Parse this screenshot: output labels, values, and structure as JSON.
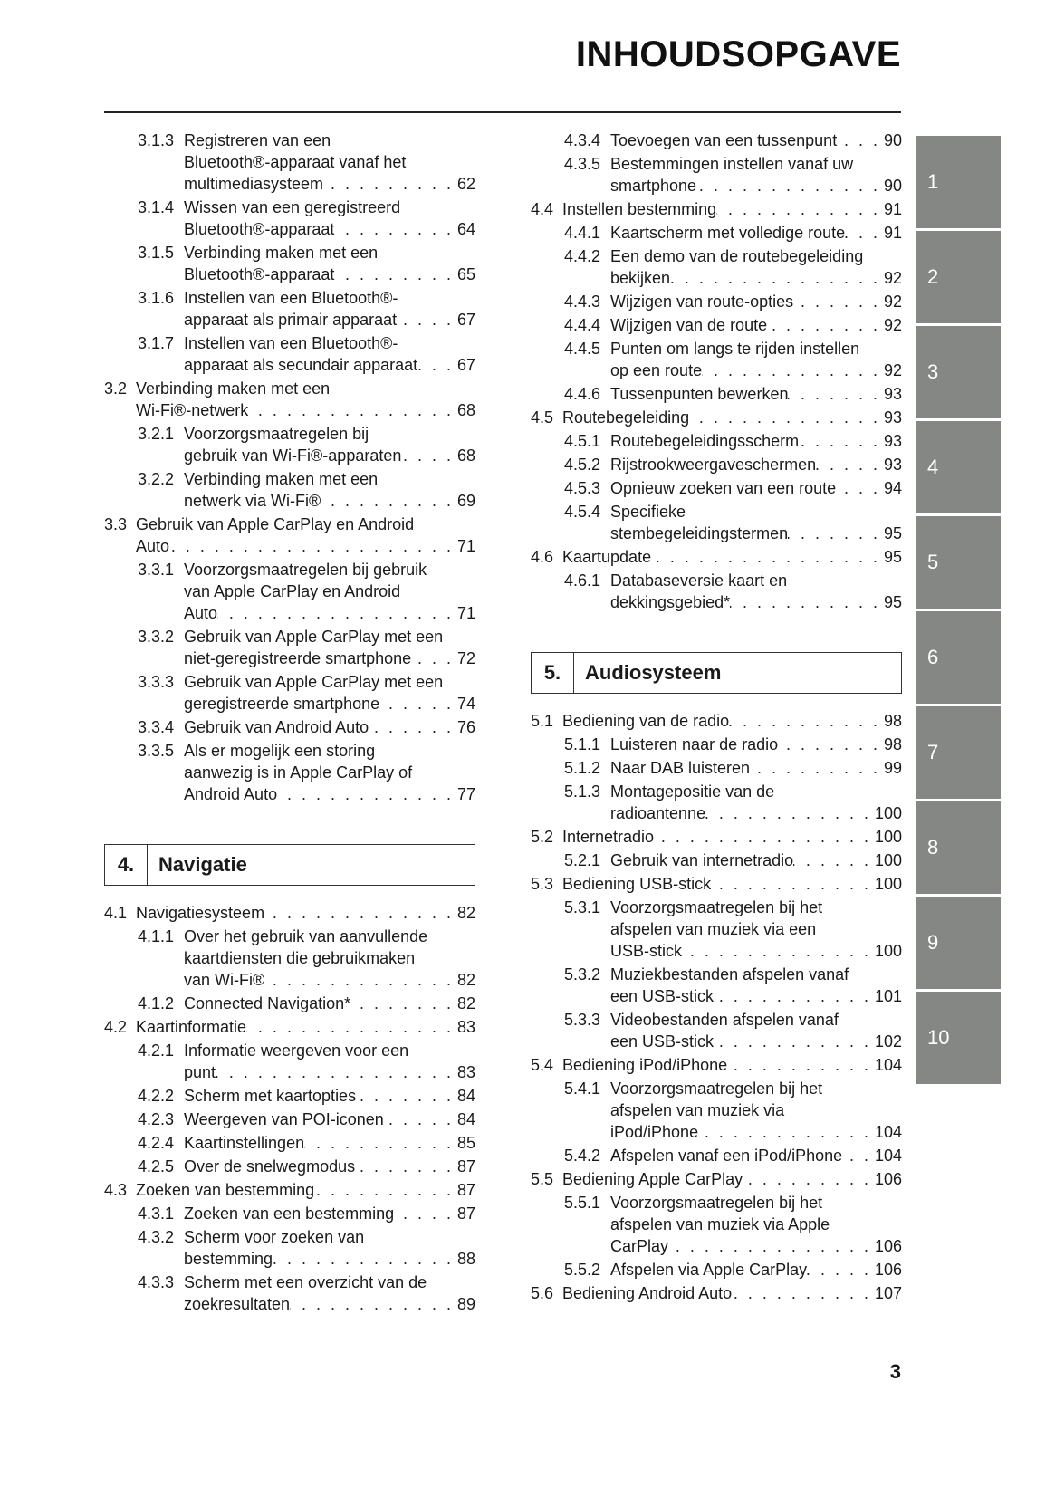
{
  "title": "INHOUDSOPGAVE",
  "page_number": "3",
  "tab_color": "#848784",
  "chapter_tabs": [
    "1",
    "2",
    "3",
    "4",
    "5",
    "6",
    "7",
    "8",
    "9",
    "10"
  ],
  "left": {
    "items": [
      {
        "num": "3.1.3",
        "level": 3,
        "lines": [
          "Registreren van een",
          "Bluetooth®-apparaat vanaf het",
          "multimediasysteem"
        ],
        "page": "62"
      },
      {
        "num": "3.1.4",
        "level": 3,
        "lines": [
          "Wissen van een geregistreerd",
          "Bluetooth®-apparaat"
        ],
        "page": "64"
      },
      {
        "num": "3.1.5",
        "level": 3,
        "lines": [
          "Verbinding maken met een",
          "Bluetooth®-apparaat"
        ],
        "page": "65"
      },
      {
        "num": "3.1.6",
        "level": 3,
        "lines": [
          "Instellen van een Bluetooth®-",
          "apparaat als primair apparaat"
        ],
        "page": "67"
      },
      {
        "num": "3.1.7",
        "level": 3,
        "lines": [
          "Instellen van een Bluetooth®-",
          "apparaat als secundair apparaat"
        ],
        "page": "67"
      },
      {
        "num": "3.2",
        "level": 2,
        "lines": [
          "Verbinding maken met een",
          "Wi-Fi®-netwerk"
        ],
        "page": "68"
      },
      {
        "num": "3.2.1",
        "level": 3,
        "lines": [
          "Voorzorgsmaatregelen bij",
          "gebruik van Wi-Fi®-apparaten"
        ],
        "page": "68"
      },
      {
        "num": "3.2.2",
        "level": 3,
        "lines": [
          "Verbinding maken met een",
          "netwerk via Wi-Fi®"
        ],
        "page": "69"
      },
      {
        "num": "3.3",
        "level": 2,
        "lines": [
          "Gebruik van Apple CarPlay en Android",
          "Auto"
        ],
        "page": "71"
      },
      {
        "num": "3.3.1",
        "level": 3,
        "lines": [
          "Voorzorgsmaatregelen bij gebruik",
          "van Apple CarPlay en Android",
          "Auto"
        ],
        "page": "71"
      },
      {
        "num": "3.3.2",
        "level": 3,
        "lines": [
          "Gebruik van Apple CarPlay met een",
          "niet-geregistreerde smartphone"
        ],
        "page": "72"
      },
      {
        "num": "3.3.3",
        "level": 3,
        "lines": [
          "Gebruik van Apple CarPlay met een",
          "geregistreerde smartphone"
        ],
        "page": "74"
      },
      {
        "num": "3.3.4",
        "level": 3,
        "lines": [
          "Gebruik van Android Auto"
        ],
        "page": "76"
      },
      {
        "num": "3.3.5",
        "level": 3,
        "lines": [
          "Als er mogelijk een storing",
          "aanwezig is in Apple CarPlay of",
          "Android Auto"
        ],
        "page": "77"
      },
      {
        "heading": true,
        "num": "4.",
        "title": "Navigatie"
      },
      {
        "num": "4.1",
        "level": 2,
        "lines": [
          "Navigatiesysteem"
        ],
        "page": "82"
      },
      {
        "num": "4.1.1",
        "level": 3,
        "lines": [
          "Over het gebruik van aanvullende",
          "kaartdiensten die gebruikmaken",
          "van Wi-Fi®"
        ],
        "page": "82"
      },
      {
        "num": "4.1.2",
        "level": 3,
        "lines": [
          "Connected Navigation*"
        ],
        "page": "82"
      },
      {
        "num": "4.2",
        "level": 2,
        "lines": [
          "Kaartinformatie"
        ],
        "page": "83"
      },
      {
        "num": "4.2.1",
        "level": 3,
        "lines": [
          "Informatie weergeven voor een",
          "punt"
        ],
        "page": "83"
      },
      {
        "num": "4.2.2",
        "level": 3,
        "lines": [
          "Scherm met kaartopties"
        ],
        "page": "84"
      },
      {
        "num": "4.2.3",
        "level": 3,
        "lines": [
          "Weergeven van POI-iconen"
        ],
        "page": "84"
      },
      {
        "num": "4.2.4",
        "level": 3,
        "lines": [
          "Kaartinstellingen"
        ],
        "page": "85"
      },
      {
        "num": "4.2.5",
        "level": 3,
        "lines": [
          "Over de snelwegmodus"
        ],
        "page": "87"
      },
      {
        "num": "4.3",
        "level": 2,
        "lines": [
          "Zoeken van bestemming"
        ],
        "page": "87"
      },
      {
        "num": "4.3.1",
        "level": 3,
        "lines": [
          "Zoeken van een bestemming"
        ],
        "page": "87"
      },
      {
        "num": "4.3.2",
        "level": 3,
        "lines": [
          "Scherm voor zoeken van",
          "bestemming"
        ],
        "page": "88"
      },
      {
        "num": "4.3.3",
        "level": 3,
        "lines": [
          "Scherm met een overzicht van de",
          "zoekresultaten"
        ],
        "page": "89"
      }
    ]
  },
  "right": {
    "items": [
      {
        "num": "4.3.4",
        "level": 3,
        "lines": [
          "Toevoegen van een tussenpunt"
        ],
        "page": "90"
      },
      {
        "num": "4.3.5",
        "level": 3,
        "lines": [
          "Bestemmingen instellen vanaf uw",
          "smartphone"
        ],
        "page": "90"
      },
      {
        "num": "4.4",
        "level": 2,
        "lines": [
          "Instellen bestemming"
        ],
        "page": "91"
      },
      {
        "num": "4.4.1",
        "level": 3,
        "lines": [
          "Kaartscherm met volledige route"
        ],
        "page": "91"
      },
      {
        "num": "4.4.2",
        "level": 3,
        "lines": [
          "Een demo van de routebegeleiding",
          "bekijken"
        ],
        "page": "92"
      },
      {
        "num": "4.4.3",
        "level": 3,
        "lines": [
          "Wijzigen van route-opties"
        ],
        "page": "92"
      },
      {
        "num": "4.4.4",
        "level": 3,
        "lines": [
          "Wijzigen van de route"
        ],
        "page": "92"
      },
      {
        "num": "4.4.5",
        "level": 3,
        "lines": [
          "Punten om langs te rijden instellen",
          "op een route"
        ],
        "page": "92"
      },
      {
        "num": "4.4.6",
        "level": 3,
        "lines": [
          "Tussenpunten bewerken"
        ],
        "page": "93"
      },
      {
        "num": "4.5",
        "level": 2,
        "lines": [
          "Routebegeleiding"
        ],
        "page": "93"
      },
      {
        "num": "4.5.1",
        "level": 3,
        "lines": [
          "Routebegeleidingsscherm"
        ],
        "page": "93"
      },
      {
        "num": "4.5.2",
        "level": 3,
        "lines": [
          "Rijstrookweergaveschermen"
        ],
        "page": "93"
      },
      {
        "num": "4.5.3",
        "level": 3,
        "lines": [
          "Opnieuw zoeken van een route"
        ],
        "page": "94"
      },
      {
        "num": "4.5.4",
        "level": 3,
        "lines": [
          "Specifieke",
          "stembegeleidingstermen"
        ],
        "page": "95"
      },
      {
        "num": "4.6",
        "level": 2,
        "lines": [
          "Kaartupdate"
        ],
        "page": "95"
      },
      {
        "num": "4.6.1",
        "level": 3,
        "lines": [
          "Databaseversie kaart en",
          "dekkingsgebied*"
        ],
        "page": "95"
      },
      {
        "heading": true,
        "num": "5.",
        "title": "Audiosysteem"
      },
      {
        "num": "5.1",
        "level": 2,
        "lines": [
          "Bediening van de radio"
        ],
        "page": "98"
      },
      {
        "num": "5.1.1",
        "level": 3,
        "lines": [
          "Luisteren naar de radio"
        ],
        "page": "98"
      },
      {
        "num": "5.1.2",
        "level": 3,
        "lines": [
          "Naar DAB luisteren"
        ],
        "page": "99"
      },
      {
        "num": "5.1.3",
        "level": 3,
        "lines": [
          "Montagepositie van de",
          "radioantenne"
        ],
        "page": "100"
      },
      {
        "num": "5.2",
        "level": 2,
        "lines": [
          "Internetradio"
        ],
        "page": "100"
      },
      {
        "num": "5.2.1",
        "level": 3,
        "lines": [
          "Gebruik van internetradio"
        ],
        "page": "100"
      },
      {
        "num": "5.3",
        "level": 2,
        "lines": [
          "Bediening USB-stick"
        ],
        "page": "100"
      },
      {
        "num": "5.3.1",
        "level": 3,
        "lines": [
          "Voorzorgsmaatregelen bij het",
          "afspelen van muziek via een",
          "USB-stick"
        ],
        "page": "100"
      },
      {
        "num": "5.3.2",
        "level": 3,
        "lines": [
          "Muziekbestanden afspelen vanaf",
          "een USB-stick"
        ],
        "page": "101"
      },
      {
        "num": "5.3.3",
        "level": 3,
        "lines": [
          "Videobestanden afspelen vanaf",
          "een USB-stick"
        ],
        "page": "102"
      },
      {
        "num": "5.4",
        "level": 2,
        "lines": [
          "Bediening iPod/iPhone"
        ],
        "page": "104"
      },
      {
        "num": "5.4.1",
        "level": 3,
        "lines": [
          "Voorzorgsmaatregelen bij het",
          "afspelen van muziek via",
          "iPod/iPhone"
        ],
        "page": "104"
      },
      {
        "num": "5.4.2",
        "level": 3,
        "lines": [
          "Afspelen vanaf een iPod/iPhone"
        ],
        "page": "104"
      },
      {
        "num": "5.5",
        "level": 2,
        "lines": [
          "Bediening Apple CarPlay"
        ],
        "page": "106"
      },
      {
        "num": "5.5.1",
        "level": 3,
        "lines": [
          "Voorzorgsmaatregelen bij het",
          "afspelen van muziek via Apple",
          "CarPlay"
        ],
        "page": "106"
      },
      {
        "num": "5.5.2",
        "level": 3,
        "lines": [
          "Afspelen via Apple CarPlay"
        ],
        "page": "106"
      },
      {
        "num": "5.6",
        "level": 2,
        "lines": [
          "Bediening Android Auto"
        ],
        "page": "107"
      }
    ]
  }
}
